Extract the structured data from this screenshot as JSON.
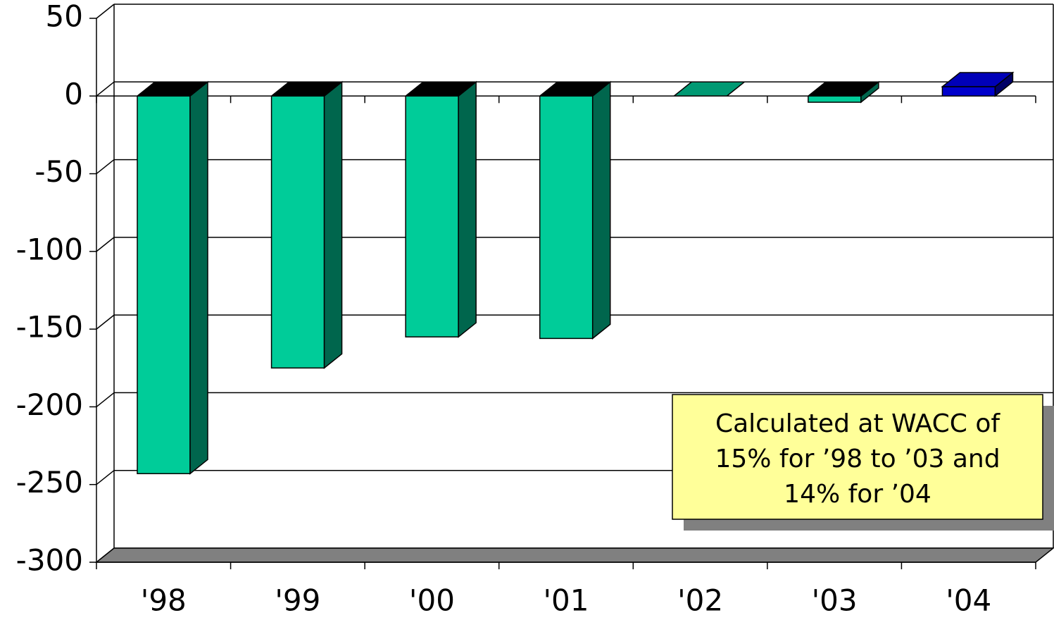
{
  "chart_data": {
    "type": "bar3d",
    "categories": [
      "'98",
      "'99",
      "'00",
      "'01",
      "'02",
      "'03",
      "'04"
    ],
    "values": [
      -243,
      -175,
      -155,
      -156,
      0,
      -4,
      6
    ],
    "colors": [
      "#00cc99",
      "#00cc99",
      "#00cc99",
      "#00cc99",
      "#00cc99",
      "#00cc99",
      "#0000cc"
    ],
    "ylim": [
      -300,
      50
    ],
    "yticks": [
      -300,
      -250,
      -200,
      -150,
      -100,
      -50,
      0,
      50
    ],
    "grid": true,
    "annotation": [
      "Calculated at WACC of",
      "15% for ’98 to ’03 and",
      "14% for ’04"
    ]
  }
}
